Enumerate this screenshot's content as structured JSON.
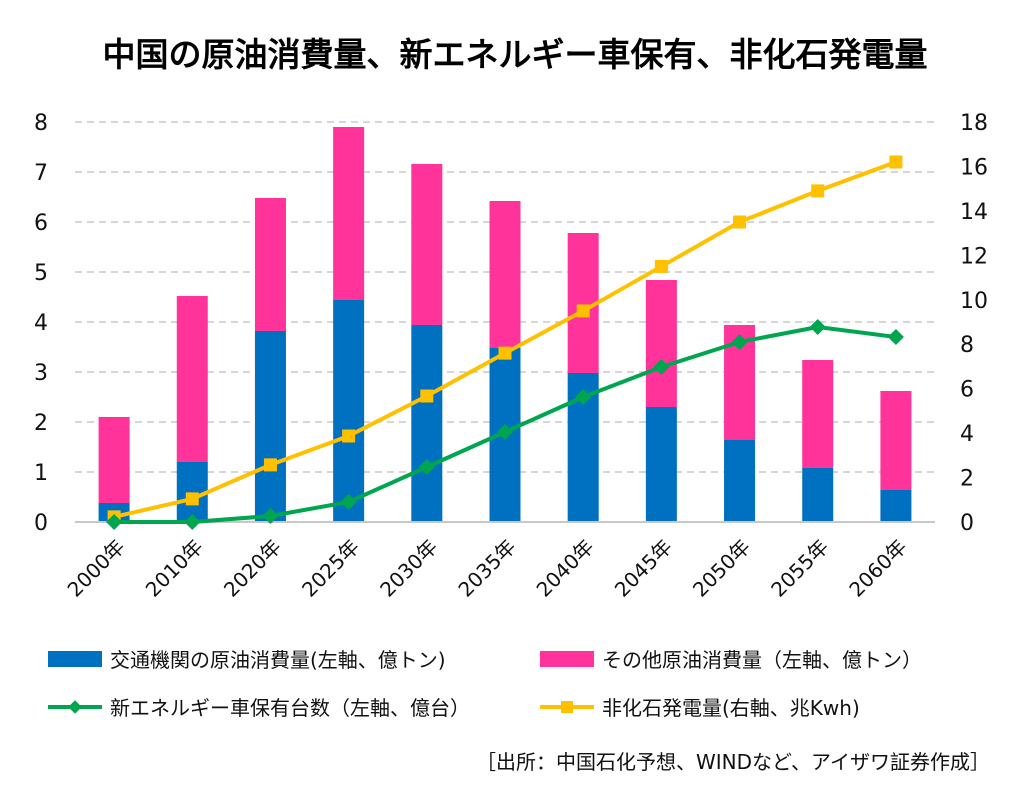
{
  "title": "中国の原油消費量、新エネルギー車保有、非化石発電量",
  "source": "［出所：中国石化予想、WINDなど、アイザワ証券作成］",
  "colors": {
    "transport_oil": "#0070C0",
    "other_oil": "#FF3399",
    "nev": "#00A550",
    "nonfossil": "#FFC000",
    "grid": "#C8C8C8"
  },
  "legend": [
    {
      "name": "交通機関の原油消費量(左軸、億トン)",
      "type": "box",
      "color": "#0070C0"
    },
    {
      "name": "その他原油消費量（左軸、億トン）",
      "type": "box",
      "color": "#FF3399"
    },
    {
      "name": "新エネルギー車保有台数（左軸、億台）",
      "type": "line-diamond",
      "color": "#00A550"
    },
    {
      "name": "非化石発電量(右軸、兆Kwh)",
      "type": "line-square",
      "color": "#FFC000"
    }
  ],
  "chart_data": {
    "type": "bar",
    "subtype": "stacked-bar-with-lines-dual-axis",
    "title": "中国の原油消費量、新エネルギー車保有、非化石発電量",
    "categories": [
      "2000年",
      "2010年",
      "2020年",
      "2025年",
      "2030年",
      "2035年",
      "2040年",
      "2045年",
      "2050年",
      "2055年",
      "2060年"
    ],
    "series": [
      {
        "name": "交通機関の原油消費量(左軸、億トン)",
        "type": "bar",
        "axis": "left",
        "stack": "oil",
        "values": [
          0.38,
          1.2,
          3.82,
          4.44,
          3.94,
          3.48,
          2.98,
          2.3,
          1.64,
          1.08,
          0.64
        ]
      },
      {
        "name": "その他原油消費量（左軸、億トン）",
        "type": "bar",
        "axis": "left",
        "stack": "oil",
        "values": [
          1.72,
          3.32,
          2.66,
          3.46,
          3.22,
          2.94,
          2.8,
          2.54,
          2.3,
          2.16,
          1.98
        ]
      },
      {
        "name": "新エネルギー車保有台数（左軸、億台）",
        "type": "line",
        "axis": "left",
        "marker": "diamond",
        "values": [
          0.0,
          0.0,
          0.12,
          0.4,
          1.1,
          1.8,
          2.5,
          3.1,
          3.6,
          3.9,
          3.7
        ]
      },
      {
        "name": "非化石発電量(右軸、兆Kwh)",
        "type": "line",
        "axis": "right",
        "marker": "square",
        "values": [
          0.23,
          1.04,
          2.57,
          3.87,
          5.67,
          7.6,
          9.5,
          11.5,
          13.5,
          14.9,
          16.2
        ]
      }
    ],
    "y_left": {
      "min": 0,
      "max": 8,
      "step": 1,
      "ticks": [
        "0",
        "1",
        "2",
        "3",
        "4",
        "5",
        "6",
        "7",
        "8"
      ]
    },
    "y_right": {
      "min": 0,
      "max": 18,
      "step": 2,
      "ticks": [
        "0",
        "2",
        "4",
        "6",
        "8",
        "10",
        "12",
        "14",
        "16",
        "18"
      ]
    },
    "xlabel": "",
    "ylabel": "",
    "grid": true,
    "legend_position": "bottom"
  }
}
